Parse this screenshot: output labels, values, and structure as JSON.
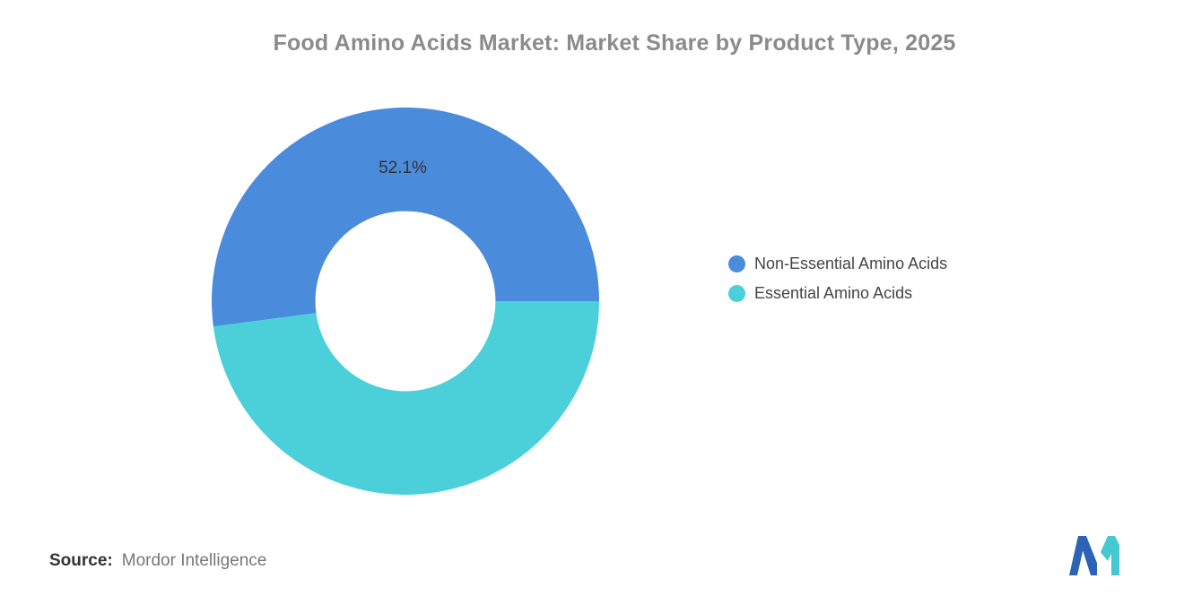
{
  "title": "Food Amino Acids Market: Market Share by Product Type, 2025",
  "chart_data": {
    "type": "pie",
    "subtype": "donut",
    "title": "Food Amino Acids Market: Market Share by Product Type, 2025",
    "labels": [
      "Non-Essential Amino Acids",
      "Essential Amino Acids"
    ],
    "values": [
      52.1,
      47.9
    ],
    "colors": [
      "#4a8bdb",
      "#4bcfd9"
    ],
    "data_labels": [
      "52.1%",
      ""
    ],
    "visible_data_label": "52.1%",
    "legend_position": "right",
    "start_angle_deg": 0,
    "direction": "counterclockwise",
    "inner_radius_ratio": 0.465
  },
  "legend": {
    "items": [
      {
        "label": "Non-Essential Amino Acids",
        "color": "#4a8bdb"
      },
      {
        "label": "Essential Amino Acids",
        "color": "#4bcfd9"
      }
    ]
  },
  "source": {
    "prefix": "Source:",
    "text": "Mordor Intelligence"
  },
  "logo": {
    "name": "mordor-intelligence-logo",
    "blue": "#2c63b5",
    "teal": "#45c8d2"
  }
}
